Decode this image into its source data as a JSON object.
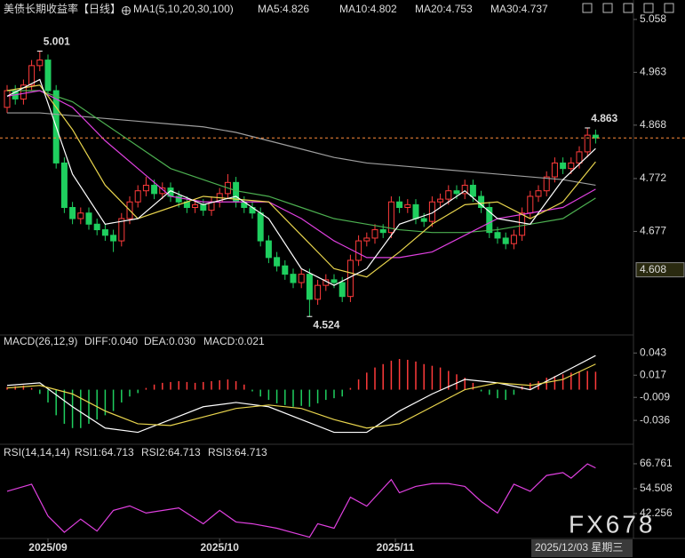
{
  "header": {
    "title": "美债长期收益率【日线】"
  },
  "watermark": "FX678",
  "chart_data": [
    {
      "type": "candlestick",
      "indicator": "MA1(5,10,20,30,100)",
      "legend": [
        {
          "label": "MA5:4.826",
          "color": "#ffffff"
        },
        {
          "label": "MA10:4.802",
          "color": "#e8d44d"
        },
        {
          "label": "MA20:4.753",
          "color": "#e040e0"
        },
        {
          "label": "MA30:4.737",
          "color": "#4caf50"
        }
      ],
      "up_color": "#ff3b3b",
      "down_color": "#1fcf5f",
      "tick_color": "#e8504a",
      "open": [
        4.9,
        4.93,
        4.915,
        4.94,
        4.975,
        4.985,
        4.93,
        4.8,
        4.72,
        4.7,
        4.71,
        4.69,
        4.68,
        4.67,
        4.66,
        4.7,
        4.73,
        4.75,
        4.76,
        4.745,
        4.755,
        4.74,
        4.73,
        4.72,
        4.725,
        4.715,
        4.73,
        4.745,
        4.765,
        4.73,
        4.72,
        4.71,
        4.66,
        4.63,
        4.615,
        4.6,
        4.585,
        4.6,
        4.555,
        4.58,
        4.59,
        4.585,
        4.56,
        4.625,
        4.66,
        4.665,
        4.68,
        4.675,
        4.73,
        4.72,
        4.725,
        4.7,
        4.695,
        4.73,
        4.735,
        4.75,
        4.745,
        4.76,
        4.74,
        4.72,
        4.675,
        4.665,
        4.655,
        4.67,
        4.71,
        4.74,
        4.75,
        4.775,
        4.8,
        4.79,
        4.8,
        4.82,
        4.85
      ],
      "high": [
        4.94,
        4.94,
        4.95,
        4.985,
        5.001,
        4.995,
        4.94,
        4.81,
        4.73,
        4.72,
        4.72,
        4.7,
        4.69,
        4.68,
        4.71,
        4.74,
        4.76,
        4.775,
        4.77,
        4.765,
        4.765,
        4.75,
        4.74,
        4.735,
        4.735,
        4.74,
        4.755,
        4.78,
        4.775,
        4.74,
        4.73,
        4.72,
        4.67,
        4.64,
        4.625,
        4.61,
        4.61,
        4.61,
        4.59,
        4.6,
        4.6,
        4.595,
        4.635,
        4.67,
        4.675,
        4.69,
        4.69,
        4.74,
        4.74,
        4.735,
        4.735,
        4.71,
        4.74,
        4.745,
        4.76,
        4.76,
        4.77,
        4.77,
        4.75,
        4.73,
        4.685,
        4.675,
        4.68,
        4.72,
        4.75,
        4.76,
        4.785,
        4.81,
        4.81,
        4.81,
        4.83,
        4.863,
        4.86
      ],
      "low": [
        4.89,
        4.905,
        4.905,
        4.93,
        4.965,
        4.92,
        4.79,
        4.71,
        4.69,
        4.69,
        4.68,
        4.67,
        4.66,
        4.64,
        4.65,
        4.69,
        4.72,
        4.74,
        4.735,
        4.735,
        4.73,
        4.72,
        4.71,
        4.71,
        4.705,
        4.705,
        4.72,
        4.735,
        4.72,
        4.71,
        4.7,
        4.65,
        4.62,
        4.605,
        4.59,
        4.575,
        4.575,
        4.524,
        4.545,
        4.57,
        4.575,
        4.55,
        4.55,
        4.615,
        4.65,
        4.655,
        4.665,
        4.665,
        4.71,
        4.71,
        4.69,
        4.685,
        4.685,
        4.72,
        4.725,
        4.735,
        4.735,
        4.73,
        4.71,
        4.665,
        4.655,
        4.645,
        4.645,
        4.66,
        4.7,
        4.73,
        4.74,
        4.765,
        4.78,
        4.78,
        4.79,
        4.81,
        4.835
      ],
      "close": [
        4.93,
        4.915,
        4.94,
        4.975,
        4.985,
        4.93,
        4.8,
        4.72,
        4.7,
        4.71,
        4.69,
        4.68,
        4.67,
        4.66,
        4.7,
        4.73,
        4.75,
        4.76,
        4.745,
        4.755,
        4.74,
        4.73,
        4.72,
        4.725,
        4.715,
        4.73,
        4.745,
        4.765,
        4.73,
        4.72,
        4.71,
        4.66,
        4.63,
        4.615,
        4.6,
        4.585,
        4.6,
        4.555,
        4.58,
        4.59,
        4.585,
        4.56,
        4.625,
        4.66,
        4.665,
        4.68,
        4.675,
        4.73,
        4.72,
        4.725,
        4.7,
        4.695,
        4.73,
        4.735,
        4.75,
        4.745,
        4.76,
        4.74,
        4.72,
        4.675,
        4.665,
        4.655,
        4.67,
        4.71,
        4.74,
        4.75,
        4.775,
        4.8,
        4.79,
        4.8,
        4.82,
        4.85,
        4.845
      ],
      "series": [
        {
          "color": "#9e9e9e",
          "x": [
            0,
            4,
            8,
            12,
            16,
            20,
            24,
            28,
            32,
            36,
            40,
            44,
            48,
            52,
            56,
            60,
            64,
            68,
            72
          ],
          "values": [
            4.89,
            4.89,
            4.885,
            4.88,
            4.875,
            4.87,
            4.865,
            4.855,
            4.84,
            4.825,
            4.81,
            4.8,
            4.795,
            4.79,
            4.785,
            4.78,
            4.775,
            4.77,
            4.76
          ]
        },
        {
          "color": "#4caf50",
          "x": [
            0,
            4,
            8,
            12,
            16,
            20,
            24,
            28,
            32,
            36,
            40,
            44,
            48,
            52,
            56,
            60,
            64,
            68,
            72
          ],
          "values": [
            4.93,
            4.93,
            4.91,
            4.87,
            4.83,
            4.79,
            4.77,
            4.75,
            4.74,
            4.72,
            4.7,
            4.69,
            4.68,
            4.675,
            4.675,
            4.68,
            4.69,
            4.7,
            4.737
          ]
        },
        {
          "color": "#e040e0",
          "x": [
            0,
            4,
            8,
            12,
            16,
            20,
            24,
            28,
            32,
            36,
            40,
            44,
            48,
            52,
            56,
            60,
            64,
            68,
            72
          ],
          "values": [
            4.92,
            4.93,
            4.9,
            4.84,
            4.79,
            4.74,
            4.73,
            4.73,
            4.73,
            4.7,
            4.66,
            4.63,
            4.63,
            4.64,
            4.67,
            4.7,
            4.71,
            4.72,
            4.753
          ]
        },
        {
          "color": "#e8d44d",
          "x": [
            0,
            4,
            8,
            12,
            16,
            20,
            24,
            28,
            32,
            36,
            40,
            44,
            48,
            52,
            56,
            60,
            64,
            68,
            72
          ],
          "values": [
            4.93,
            4.94,
            4.86,
            4.76,
            4.7,
            4.72,
            4.74,
            4.735,
            4.73,
            4.67,
            4.61,
            4.595,
            4.64,
            4.69,
            4.725,
            4.73,
            4.7,
            4.73,
            4.802
          ]
        },
        {
          "color": "#ffffff",
          "x": [
            0,
            4,
            8,
            12,
            16,
            20,
            24,
            28,
            32,
            36,
            40,
            44,
            48,
            52,
            56,
            60,
            64,
            68,
            72
          ],
          "values": [
            4.92,
            4.95,
            4.78,
            4.69,
            4.7,
            4.75,
            4.725,
            4.74,
            4.7,
            4.61,
            4.58,
            4.61,
            4.69,
            4.71,
            4.75,
            4.7,
            4.69,
            4.77,
            4.826
          ]
        }
      ],
      "ylim": [
        4.494,
        5.069
      ],
      "yticks": [
        5.058,
        4.963,
        4.868,
        4.772,
        4.677
      ],
      "cursor_value": 4.608,
      "cursor_date": "2025/12/03 星期三",
      "xticks": [
        {
          "value": 5,
          "label": "2025/09"
        },
        {
          "value": 26,
          "label": "2025/10"
        },
        {
          "value": 47.5,
          "label": "2025/11"
        }
      ]
    },
    {
      "type": "macd",
      "indicator": "MACD(26,12,9)",
      "legend": [
        {
          "label": "DIFF:0.040",
          "color": "#ffffff"
        },
        {
          "label": "DEA:0.030",
          "color": "#e8d44d"
        },
        {
          "label": "MACD:0.021",
          "color": "#e040e0"
        }
      ],
      "up_color": "#ff3b3b",
      "down_color": "#1fcf5f",
      "tick_color": "#dddddd",
      "values": [
        0.003,
        0.004,
        0.005,
        0.002,
        -0.005,
        -0.015,
        -0.03,
        -0.04,
        -0.045,
        -0.045,
        -0.04,
        -0.035,
        -0.03,
        -0.025,
        -0.015,
        -0.008,
        -0.004,
        0.002,
        0.006,
        0.008,
        0.009,
        0.01,
        0.009,
        0.008,
        0.009,
        0.01,
        0.011,
        0.012,
        0.01,
        0.006,
        -0.002,
        -0.008,
        -0.012,
        -0.016,
        -0.018,
        -0.02,
        -0.019,
        -0.02,
        -0.016,
        -0.012,
        -0.01,
        -0.008,
        0.002,
        0.012,
        0.02,
        0.026,
        0.03,
        0.034,
        0.036,
        0.035,
        0.033,
        0.03,
        0.028,
        0.026,
        0.022,
        0.018,
        0.014,
        0.008,
        -0.002,
        -0.006,
        -0.01,
        -0.012,
        -0.006,
        0.004,
        0.008,
        0.01,
        0.014,
        0.016,
        0.018,
        0.02,
        0.021,
        0.022,
        0.021
      ],
      "series": [
        {
          "color": "#ffffff",
          "x": [
            0,
            4,
            8,
            12,
            16,
            20,
            24,
            28,
            32,
            36,
            40,
            44,
            48,
            52,
            56,
            60,
            64,
            68,
            72
          ],
          "values": [
            0.005,
            0.008,
            -0.02,
            -0.045,
            -0.05,
            -0.035,
            -0.02,
            -0.015,
            -0.02,
            -0.035,
            -0.05,
            -0.05,
            -0.025,
            -0.005,
            0.012,
            0.008,
            0.0,
            0.02,
            0.04
          ]
        },
        {
          "color": "#e8d44d",
          "x": [
            0,
            4,
            8,
            12,
            16,
            20,
            24,
            28,
            32,
            36,
            40,
            44,
            48,
            52,
            56,
            60,
            64,
            68,
            72
          ],
          "values": [
            0.002,
            0.005,
            -0.005,
            -0.025,
            -0.04,
            -0.042,
            -0.032,
            -0.022,
            -0.018,
            -0.022,
            -0.035,
            -0.045,
            -0.04,
            -0.02,
            0.0,
            0.008,
            0.005,
            0.012,
            0.03
          ]
        }
      ],
      "ylim": [
        -0.064,
        0.061
      ],
      "yticks": [
        0.043,
        0.017,
        -0.009,
        -0.036
      ]
    },
    {
      "type": "line",
      "indicator": "RSI(14,14,14)",
      "legend": [
        {
          "label": "RSI1:64.713",
          "color": "#ffffff"
        },
        {
          "label": "RSI2:64.713",
          "color": "#e8d44d"
        },
        {
          "label": "RSI3:64.713",
          "color": "#e040e0"
        }
      ],
      "tick_color": "#aaaaaa",
      "series": [
        {
          "color": "#e040e0",
          "x": [
            0,
            3,
            5,
            7,
            9,
            11,
            13,
            15,
            17,
            21,
            24,
            26,
            28,
            30,
            33,
            35,
            37,
            38,
            40,
            42,
            44,
            47,
            48,
            50,
            52,
            54,
            56,
            58,
            60,
            62,
            64,
            66,
            68,
            69,
            71,
            72
          ],
          "values": [
            53.2,
            56.7,
            41,
            33,
            39.5,
            33.6,
            43.8,
            46,
            42.5,
            45,
            37.2,
            43.8,
            38.1,
            37.2,
            35,
            32.8,
            30.6,
            37.2,
            35,
            50.3,
            45.9,
            59,
            52.5,
            55.6,
            57,
            57,
            55.6,
            48.2,
            42.5,
            56.7,
            53.2,
            61,
            62.4,
            59.7,
            66.7,
            64.713
          ]
        }
      ],
      "ylim": [
        30.4,
        75.5
      ],
      "yticks": [
        66.761,
        54.508,
        42.256
      ]
    }
  ]
}
